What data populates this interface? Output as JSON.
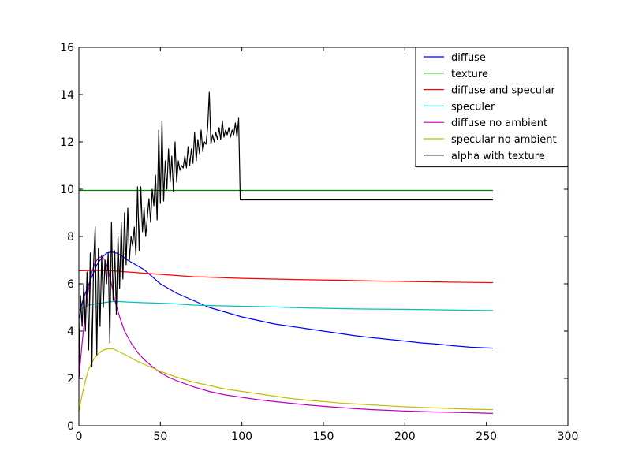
{
  "chart_data": {
    "type": "line",
    "title": "",
    "xlabel": "",
    "ylabel": "",
    "xlim": [
      0,
      300
    ],
    "ylim": [
      0,
      16
    ],
    "xticks": [
      0,
      50,
      100,
      150,
      200,
      250,
      300
    ],
    "yticks": [
      0,
      2,
      4,
      6,
      8,
      10,
      12,
      14,
      16
    ],
    "grid": false,
    "legend_position": "top-right",
    "series": [
      {
        "name": "diffuse",
        "color": "#0000ff",
        "points": [
          [
            0,
            4.5
          ],
          [
            2,
            5.2
          ],
          [
            5,
            5.8
          ],
          [
            8,
            6.3
          ],
          [
            11,
            6.8
          ],
          [
            14,
            7.1
          ],
          [
            17,
            7.3
          ],
          [
            20,
            7.35
          ],
          [
            23,
            7.3
          ],
          [
            26,
            7.2
          ],
          [
            30,
            7.0
          ],
          [
            35,
            6.8
          ],
          [
            40,
            6.6
          ],
          [
            45,
            6.3
          ],
          [
            50,
            6.0
          ],
          [
            55,
            5.8
          ],
          [
            60,
            5.6
          ],
          [
            65,
            5.45
          ],
          [
            70,
            5.3
          ],
          [
            75,
            5.15
          ],
          [
            80,
            5.0
          ],
          [
            90,
            4.8
          ],
          [
            100,
            4.6
          ],
          [
            110,
            4.45
          ],
          [
            120,
            4.3
          ],
          [
            130,
            4.2
          ],
          [
            140,
            4.1
          ],
          [
            150,
            4.0
          ],
          [
            160,
            3.9
          ],
          [
            170,
            3.8
          ],
          [
            180,
            3.72
          ],
          [
            190,
            3.65
          ],
          [
            200,
            3.58
          ],
          [
            210,
            3.5
          ],
          [
            220,
            3.45
          ],
          [
            230,
            3.38
          ],
          [
            240,
            3.32
          ],
          [
            254,
            3.28
          ]
        ]
      },
      {
        "name": "texture",
        "color": "#008000",
        "points": [
          [
            0,
            9.95
          ],
          [
            254,
            9.95
          ]
        ]
      },
      {
        "name": "diffuse and specular",
        "color": "#ff0000",
        "points": [
          [
            0,
            6.55
          ],
          [
            10,
            6.57
          ],
          [
            20,
            6.55
          ],
          [
            30,
            6.5
          ],
          [
            40,
            6.45
          ],
          [
            50,
            6.4
          ],
          [
            60,
            6.35
          ],
          [
            70,
            6.3
          ],
          [
            80,
            6.28
          ],
          [
            100,
            6.23
          ],
          [
            120,
            6.2
          ],
          [
            140,
            6.17
          ],
          [
            160,
            6.15
          ],
          [
            180,
            6.12
          ],
          [
            200,
            6.1
          ],
          [
            220,
            6.08
          ],
          [
            240,
            6.06
          ],
          [
            254,
            6.05
          ]
        ]
      },
      {
        "name": "speculer",
        "color": "#00bfbf",
        "points": [
          [
            0,
            4.9
          ],
          [
            3,
            5.0
          ],
          [
            6,
            5.1
          ],
          [
            10,
            5.15
          ],
          [
            15,
            5.2
          ],
          [
            20,
            5.25
          ],
          [
            25,
            5.25
          ],
          [
            30,
            5.23
          ],
          [
            40,
            5.2
          ],
          [
            50,
            5.18
          ],
          [
            60,
            5.15
          ],
          [
            70,
            5.1
          ],
          [
            80,
            5.08
          ],
          [
            100,
            5.05
          ],
          [
            120,
            5.02
          ],
          [
            140,
            4.98
          ],
          [
            160,
            4.95
          ],
          [
            180,
            4.93
          ],
          [
            200,
            4.92
          ],
          [
            220,
            4.9
          ],
          [
            240,
            4.88
          ],
          [
            254,
            4.87
          ]
        ]
      },
      {
        "name": "diffuse no ambient",
        "color": "#bf00bf",
        "points": [
          [
            0,
            2.0
          ],
          [
            2,
            3.5
          ],
          [
            4,
            4.8
          ],
          [
            6,
            5.8
          ],
          [
            8,
            6.5
          ],
          [
            10,
            6.9
          ],
          [
            12,
            7.1
          ],
          [
            14,
            7.15
          ],
          [
            16,
            7.0
          ],
          [
            18,
            6.6
          ],
          [
            20,
            6.0
          ],
          [
            22,
            5.3
          ],
          [
            25,
            4.6
          ],
          [
            28,
            4.0
          ],
          [
            32,
            3.5
          ],
          [
            36,
            3.1
          ],
          [
            40,
            2.8
          ],
          [
            45,
            2.5
          ],
          [
            50,
            2.25
          ],
          [
            55,
            2.05
          ],
          [
            60,
            1.9
          ],
          [
            65,
            1.78
          ],
          [
            70,
            1.65
          ],
          [
            80,
            1.45
          ],
          [
            90,
            1.3
          ],
          [
            100,
            1.2
          ],
          [
            110,
            1.1
          ],
          [
            120,
            1.02
          ],
          [
            130,
            0.95
          ],
          [
            140,
            0.88
          ],
          [
            150,
            0.82
          ],
          [
            160,
            0.77
          ],
          [
            170,
            0.72
          ],
          [
            180,
            0.68
          ],
          [
            190,
            0.65
          ],
          [
            200,
            0.62
          ],
          [
            220,
            0.58
          ],
          [
            240,
            0.55
          ],
          [
            254,
            0.52
          ]
        ]
      },
      {
        "name": "specular no ambient",
        "color": "#bfbf00",
        "points": [
          [
            0,
            0.6
          ],
          [
            2,
            1.3
          ],
          [
            4,
            1.9
          ],
          [
            6,
            2.4
          ],
          [
            9,
            2.8
          ],
          [
            12,
            3.05
          ],
          [
            15,
            3.2
          ],
          [
            18,
            3.25
          ],
          [
            21,
            3.25
          ],
          [
            24,
            3.15
          ],
          [
            27,
            3.05
          ],
          [
            30,
            2.95
          ],
          [
            35,
            2.75
          ],
          [
            40,
            2.6
          ],
          [
            45,
            2.45
          ],
          [
            50,
            2.3
          ],
          [
            60,
            2.05
          ],
          [
            70,
            1.85
          ],
          [
            80,
            1.7
          ],
          [
            90,
            1.55
          ],
          [
            100,
            1.45
          ],
          [
            110,
            1.35
          ],
          [
            120,
            1.25
          ],
          [
            130,
            1.15
          ],
          [
            140,
            1.08
          ],
          [
            150,
            1.02
          ],
          [
            160,
            0.96
          ],
          [
            170,
            0.92
          ],
          [
            180,
            0.88
          ],
          [
            190,
            0.84
          ],
          [
            200,
            0.8
          ],
          [
            220,
            0.75
          ],
          [
            240,
            0.7
          ],
          [
            254,
            0.68
          ]
        ]
      },
      {
        "name": "alpha with texture",
        "color": "#000000",
        "points": [
          [
            0,
            2.0
          ],
          [
            1,
            5.5
          ],
          [
            2,
            4.2
          ],
          [
            3,
            6.0
          ],
          [
            4,
            4.0
          ],
          [
            5,
            6.5
          ],
          [
            6,
            3.2
          ],
          [
            7,
            7.3
          ],
          [
            8,
            2.5
          ],
          [
            9,
            6.8
          ],
          [
            10,
            8.4
          ],
          [
            11,
            3.0
          ],
          [
            12,
            7.5
          ],
          [
            13,
            4.2
          ],
          [
            14,
            7.2
          ],
          [
            15,
            5.0
          ],
          [
            16,
            7.0
          ],
          [
            17,
            6.0
          ],
          [
            18,
            7.3
          ],
          [
            19,
            3.5
          ],
          [
            20,
            8.6
          ],
          [
            21,
            5.3
          ],
          [
            22,
            7.4
          ],
          [
            23,
            4.7
          ],
          [
            24,
            8.0
          ],
          [
            25,
            5.8
          ],
          [
            26,
            8.6
          ],
          [
            27,
            6.2
          ],
          [
            28,
            9.0
          ],
          [
            29,
            6.8
          ],
          [
            30,
            9.2
          ],
          [
            31,
            7.0
          ],
          [
            32,
            8.0
          ],
          [
            33,
            7.6
          ],
          [
            34,
            8.4
          ],
          [
            35,
            7.2
          ],
          [
            36,
            10.1
          ],
          [
            37,
            7.4
          ],
          [
            38,
            10.1
          ],
          [
            39,
            8.2
          ],
          [
            40,
            9.2
          ],
          [
            41,
            8.0
          ],
          [
            42,
            8.8
          ],
          [
            43,
            9.6
          ],
          [
            44,
            8.6
          ],
          [
            45,
            10.0
          ],
          [
            46,
            9.3
          ],
          [
            47,
            10.6
          ],
          [
            48,
            8.7
          ],
          [
            49,
            12.5
          ],
          [
            50,
            9.4
          ],
          [
            51,
            12.9
          ],
          [
            52,
            9.5
          ],
          [
            53,
            11.2
          ],
          [
            54,
            10.0
          ],
          [
            55,
            11.7
          ],
          [
            56,
            10.3
          ],
          [
            57,
            11.4
          ],
          [
            58,
            9.9
          ],
          [
            59,
            12.0
          ],
          [
            60,
            10.3
          ],
          [
            61,
            11.2
          ],
          [
            62,
            10.8
          ],
          [
            63,
            11.0
          ],
          [
            64,
            10.9
          ],
          [
            65,
            11.4
          ],
          [
            66,
            10.9
          ],
          [
            67,
            11.8
          ],
          [
            68,
            11.0
          ],
          [
            69,
            11.7
          ],
          [
            70,
            11.1
          ],
          [
            71,
            12.4
          ],
          [
            72,
            11.2
          ],
          [
            73,
            12.1
          ],
          [
            74,
            11.5
          ],
          [
            75,
            12.5
          ],
          [
            76,
            11.6
          ],
          [
            77,
            12.0
          ],
          [
            78,
            11.9
          ],
          [
            79,
            12.6
          ],
          [
            80,
            14.1
          ],
          [
            81,
            11.9
          ],
          [
            82,
            12.3
          ],
          [
            83,
            12.0
          ],
          [
            84,
            12.4
          ],
          [
            85,
            12.1
          ],
          [
            86,
            12.6
          ],
          [
            87,
            12.1
          ],
          [
            88,
            12.9
          ],
          [
            89,
            12.2
          ],
          [
            90,
            12.5
          ],
          [
            91,
            12.3
          ],
          [
            92,
            12.6
          ],
          [
            93,
            12.2
          ],
          [
            94,
            12.5
          ],
          [
            95,
            12.3
          ],
          [
            96,
            12.8
          ],
          [
            97,
            12.2
          ],
          [
            98,
            13.0
          ],
          [
            99,
            9.55
          ],
          [
            254,
            9.55
          ]
        ]
      }
    ]
  }
}
